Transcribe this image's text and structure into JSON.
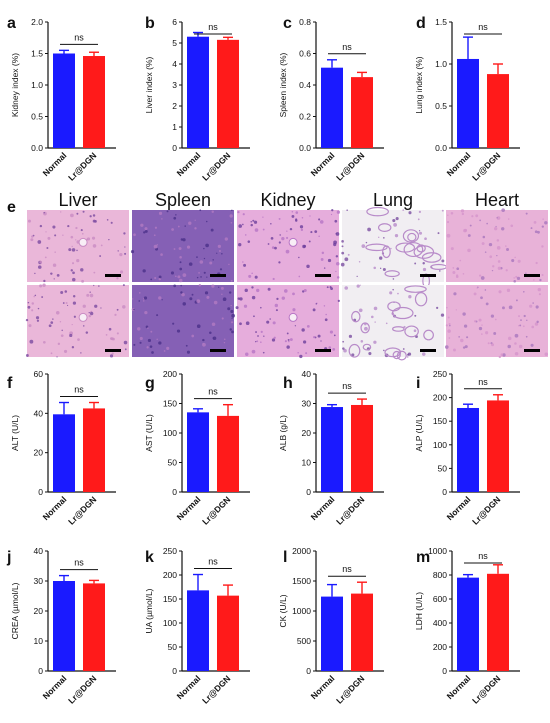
{
  "colors": {
    "normal": "#1a1aff",
    "treated": "#ff1a1a",
    "axis": "#111111",
    "histo_bg": "#e6b8dc",
    "histo_purple": "#9a5fb0",
    "histo_dark": "#4a2a8a",
    "scalebar": "#000000"
  },
  "chart_data": [
    {
      "panel": "a",
      "type": "bar",
      "categories": [
        "Normal",
        "Lr@DGN"
      ],
      "values": [
        1.5,
        1.46
      ],
      "errors": [
        0.05,
        0.06
      ],
      "ylabel": "Kidney index (%)",
      "ylim": [
        0,
        2.0
      ],
      "yticks": [
        "0.0",
        "0.5",
        "1.0",
        "1.5",
        "2.0"
      ],
      "significance": "ns"
    },
    {
      "panel": "b",
      "type": "bar",
      "categories": [
        "Normal",
        "Lr@DGN"
      ],
      "values": [
        5.3,
        5.15
      ],
      "errors": [
        0.2,
        0.12
      ],
      "ylabel": "Liver index (%)",
      "ylim": [
        0,
        6
      ],
      "yticks": [
        "0",
        "1",
        "2",
        "3",
        "4",
        "5",
        "6"
      ],
      "significance": "ns"
    },
    {
      "panel": "c",
      "type": "bar",
      "categories": [
        "Normal",
        "Lr@DGN"
      ],
      "values": [
        0.51,
        0.45
      ],
      "errors": [
        0.05,
        0.03
      ],
      "ylabel": "Spleen index (%)",
      "ylim": [
        0,
        0.8
      ],
      "yticks": [
        "0.0",
        "0.2",
        "0.4",
        "0.6",
        "0.8"
      ],
      "significance": "ns"
    },
    {
      "panel": "d",
      "type": "bar",
      "categories": [
        "Normal",
        "Lr@DGN"
      ],
      "values": [
        1.06,
        0.88
      ],
      "errors": [
        0.26,
        0.12
      ],
      "ylabel": "Lung index (%)",
      "ylim": [
        0,
        1.5
      ],
      "yticks": [
        "0.0",
        "0.5",
        "1.0",
        "1.5"
      ],
      "significance": "ns"
    },
    {
      "panel": "f",
      "type": "bar",
      "categories": [
        "Normal",
        "Lr@DGN"
      ],
      "values": [
        39.5,
        42.5
      ],
      "errors": [
        6,
        3
      ],
      "ylabel": "ALT (U/L)",
      "ylim": [
        0,
        60
      ],
      "yticks": [
        "0",
        "20",
        "40",
        "60"
      ],
      "significance": "ns"
    },
    {
      "panel": "g",
      "type": "bar",
      "categories": [
        "Normal",
        "Lr@DGN"
      ],
      "values": [
        135,
        129
      ],
      "errors": [
        6,
        19
      ],
      "ylabel": "AST (U/L)",
      "ylim": [
        0,
        200
      ],
      "yticks": [
        "0",
        "50",
        "100",
        "150",
        "200"
      ],
      "significance": "ns"
    },
    {
      "panel": "h",
      "type": "bar",
      "categories": [
        "Normal",
        "Lr@DGN"
      ],
      "values": [
        28.8,
        29.5
      ],
      "errors": [
        0.8,
        2
      ],
      "ylabel": "ALB (g/L)",
      "ylim": [
        0,
        40
      ],
      "yticks": [
        "0",
        "10",
        "20",
        "30",
        "40"
      ],
      "significance": "ns"
    },
    {
      "panel": "i",
      "type": "bar",
      "categories": [
        "Normal",
        "Lr@DGN"
      ],
      "values": [
        178,
        194
      ],
      "errors": [
        8,
        12
      ],
      "ylabel": "ALP (U/L)",
      "ylim": [
        0,
        250
      ],
      "yticks": [
        "0",
        "50",
        "100",
        "150",
        "200",
        "250"
      ],
      "significance": "ns"
    },
    {
      "panel": "j",
      "type": "bar",
      "categories": [
        "Normal",
        "Lr@DGN"
      ],
      "values": [
        30,
        29.2
      ],
      "errors": [
        1.8,
        1
      ],
      "ylabel": "CREA (µmol/L)",
      "ylim": [
        0,
        40
      ],
      "yticks": [
        "0",
        "10",
        "20",
        "30",
        "40"
      ],
      "significance": "ns"
    },
    {
      "panel": "k",
      "type": "bar",
      "categories": [
        "Normal",
        "Lr@DGN"
      ],
      "values": [
        168,
        157
      ],
      "errors": [
        33,
        22
      ],
      "ylabel": "UA (µmol/L)",
      "ylim": [
        0,
        250
      ],
      "yticks": [
        "0",
        "50",
        "100",
        "150",
        "200",
        "250"
      ],
      "significance": "ns"
    },
    {
      "panel": "l",
      "type": "bar",
      "categories": [
        "Normal",
        "Lr@DGN"
      ],
      "values": [
        1240,
        1290
      ],
      "errors": [
        200,
        190
      ],
      "ylabel": "CK (U/L)",
      "ylim": [
        0,
        2000
      ],
      "yticks": [
        "0",
        "500",
        "1000",
        "1500",
        "2000"
      ],
      "significance": "ns"
    },
    {
      "panel": "m",
      "type": "bar",
      "categories": [
        "Normal",
        "Lr@DGN"
      ],
      "values": [
        778,
        810
      ],
      "errors": [
        25,
        75
      ],
      "ylabel": "LDH (U/L)",
      "ylim": [
        0,
        1000
      ],
      "yticks": [
        "0",
        "200",
        "400",
        "600",
        "800",
        "1000"
      ],
      "significance": "ns"
    }
  ],
  "histology": {
    "panel_letter": "e",
    "organs": [
      "Liver",
      "Spleen",
      "Kidney",
      "Lung",
      "Heart"
    ]
  }
}
